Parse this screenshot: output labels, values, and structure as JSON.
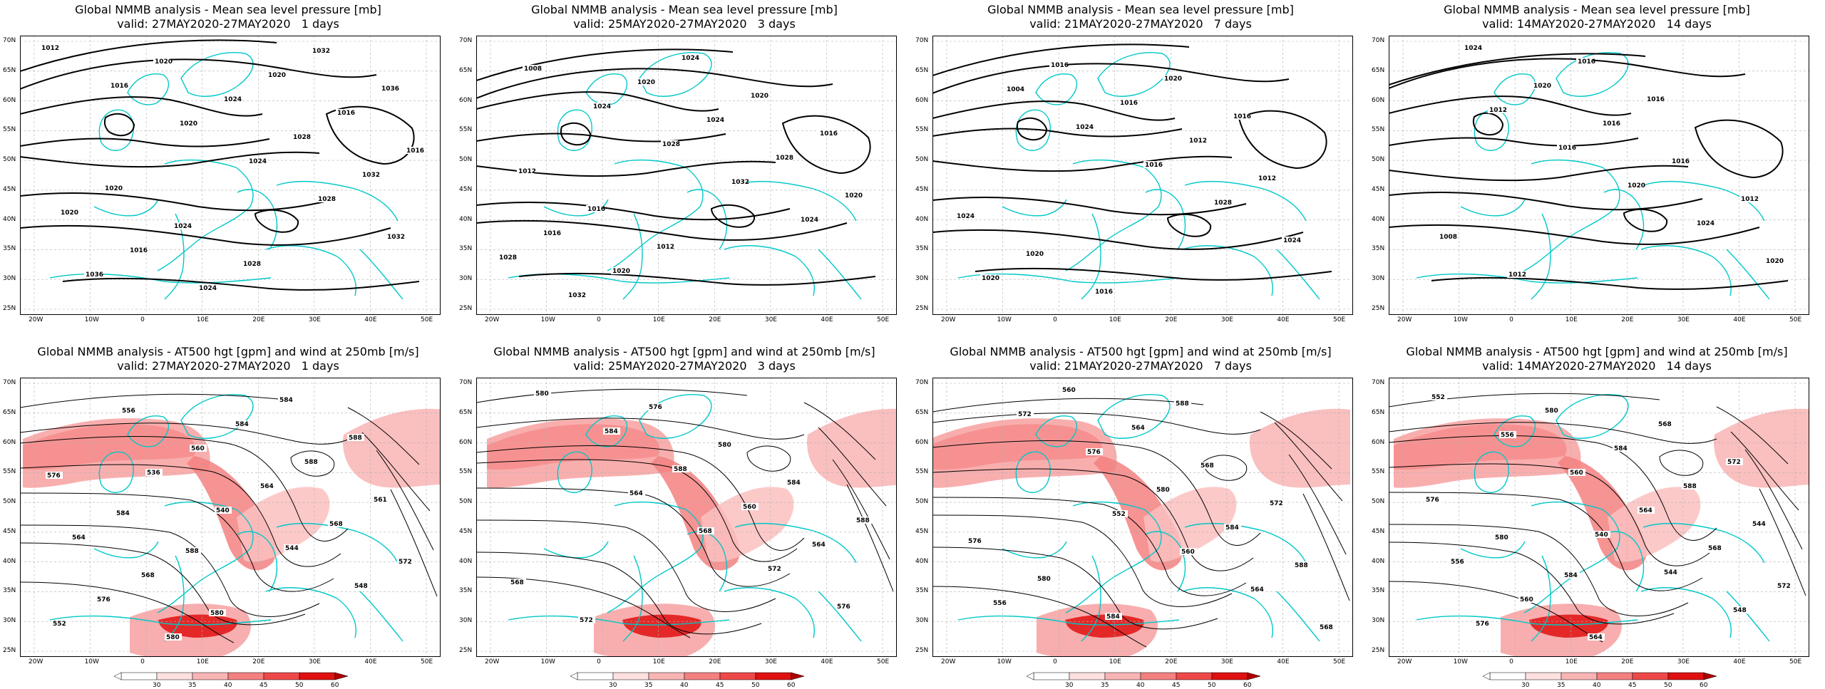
{
  "panels": [
    {
      "title": "Global NMMB analysis - Mean sea level pressure [mb]",
      "valid": "valid: 27MAY2020-27MAY2020   1 days",
      "type": "mslp",
      "contour_labels": [
        "1012",
        "1016",
        "1020",
        "1024",
        "1028",
        "1032",
        "1036",
        "1020",
        "1024",
        "1028",
        "1032",
        "1020",
        "1016",
        "1024",
        "1020",
        "1016",
        "1016",
        "1020",
        "1024",
        "1028",
        "1032",
        "1036"
      ]
    },
    {
      "title": "Global NMMB analysis - Mean sea level pressure [mb]",
      "valid": "valid: 25MAY2020-27MAY2020   3 days",
      "type": "mslp",
      "contour_labels": [
        "1008",
        "1024",
        "1028",
        "1032",
        "1024",
        "1028",
        "1032",
        "1020",
        "1024",
        "1028",
        "1020",
        "1016",
        "1020",
        "1024",
        "1020",
        "1016",
        "1012",
        "1016",
        "1012"
      ]
    },
    {
      "title": "Global NMMB analysis - Mean sea level pressure [mb]",
      "valid": "valid: 21MAY2020-27MAY2020   7 days",
      "type": "mslp",
      "contour_labels": [
        "1004",
        "1024",
        "1016",
        "1028",
        "1024",
        "1020",
        "1016",
        "1016",
        "1012",
        "1012",
        "1024",
        "1020",
        "1016",
        "1020",
        "1016"
      ]
    },
    {
      "title": "Global NMMB analysis - Mean sea level pressure [mb]",
      "valid": "valid: 14MAY2020-27MAY2020   14 days",
      "type": "mslp",
      "contour_labels": [
        "1012",
        "1016",
        "1020",
        "1024",
        "1020",
        "1024",
        "1020",
        "1016",
        "1016",
        "1012",
        "1008",
        "1012",
        "1016",
        "1016"
      ]
    },
    {
      "title": "Global NMMB analysis - AT500 hgt [gpm] and wind at 250mb [m/s]",
      "valid": "valid: 27MAY2020-27MAY2020   1 days",
      "type": "z500",
      "contour_labels": [
        "536",
        "540",
        "544",
        "548",
        "552",
        "556",
        "560",
        "564",
        "568",
        "572",
        "576",
        "580",
        "584",
        "588",
        "561",
        "564",
        "568",
        "580",
        "584",
        "588",
        "576",
        "584",
        "588"
      ]
    },
    {
      "title": "Global NMMB analysis - AT500 hgt [gpm] and wind at 250mb [m/s]",
      "valid": "valid: 25MAY2020-27MAY2020   3 days",
      "type": "z500",
      "contour_labels": [
        "564",
        "568",
        "572",
        "576",
        "580",
        "584",
        "588",
        "560",
        "564",
        "568",
        "572",
        "576",
        "580",
        "584",
        "588"
      ]
    },
    {
      "title": "Global NMMB analysis - AT500 hgt [gpm] and wind at 250mb [m/s]",
      "valid": "valid: 21MAY2020-27MAY2020   7 days",
      "type": "z500",
      "contour_labels": [
        "552",
        "560",
        "564",
        "568",
        "572",
        "576",
        "580",
        "584",
        "588",
        "556",
        "560",
        "564",
        "568",
        "572",
        "576",
        "580",
        "584",
        "588"
      ]
    },
    {
      "title": "Global NMMB analysis - AT500 hgt [gpm] and wind at 250mb [m/s]",
      "valid": "valid: 14MAY2020-27MAY2020   14 days",
      "type": "z500",
      "contour_labels": [
        "540",
        "544",
        "548",
        "552",
        "556",
        "560",
        "564",
        "568",
        "572",
        "576",
        "580",
        "584",
        "588",
        "544",
        "556",
        "560",
        "564",
        "568",
        "572",
        "576",
        "580",
        "584"
      ]
    }
  ],
  "axes": {
    "lat_ticks": [
      "70N",
      "65N",
      "60N",
      "55N",
      "50N",
      "45N",
      "40N",
      "35N",
      "30N",
      "25N"
    ],
    "lon_ticks": [
      "20W",
      "10W",
      "0",
      "10E",
      "20E",
      "30E",
      "40E",
      "50E"
    ]
  },
  "colorbar": {
    "labels": [
      "30",
      "35",
      "40",
      "45",
      "50",
      "60"
    ],
    "colors": [
      "#ffffff",
      "#fde0e0",
      "#f9b4b4",
      "#f48080",
      "#ee4848",
      "#e01010",
      "#b00000"
    ]
  },
  "colors": {
    "coast": "#00c8c8",
    "contour": "#000000",
    "grid": "#b0b0b0",
    "jet": "#ff2020"
  }
}
